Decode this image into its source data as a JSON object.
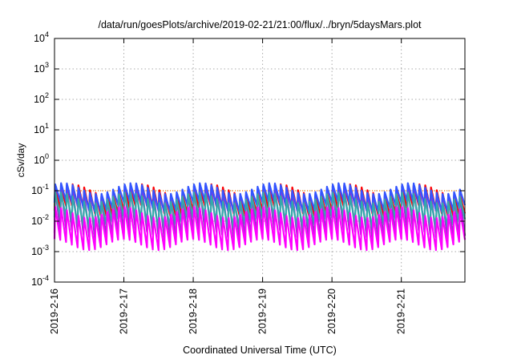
{
  "chart_data": {
    "type": "line",
    "title": "/data/run/goesPlots/archive/2019-02-21/21:00/flux/../bryn/5daysMars.plot",
    "xlabel": "Coordinated Universal Time (UTC)",
    "ylabel": "cSv/day",
    "yscale": "log",
    "ylim": [
      0.0001,
      10000
    ],
    "xlim": [
      "2019-02-16",
      "2019-02-21 22:00"
    ],
    "grid": true,
    "x_ticks": [
      "2019-2-16",
      "2019-2-17",
      "2019-2-18",
      "2019-2-19",
      "2019-2-20",
      "2019-2-21"
    ],
    "y_ticks": [
      {
        "base": "10",
        "exp": "-4",
        "value": 0.0001
      },
      {
        "base": "10",
        "exp": "-3",
        "value": 0.001
      },
      {
        "base": "10",
        "exp": "-2",
        "value": 0.01
      },
      {
        "base": "10",
        "exp": "-1",
        "value": 0.1
      },
      {
        "base": "10",
        "exp": "0",
        "value": 1
      },
      {
        "base": "10",
        "exp": "1",
        "value": 10
      },
      {
        "base": "10",
        "exp": "2",
        "value": 100
      },
      {
        "base": "10",
        "exp": "3",
        "value": 1000
      },
      {
        "base": "10",
        "exp": "4",
        "value": 10000
      }
    ],
    "cycle_hours": 2,
    "series_colors": [
      "#ff0000",
      "#9933cc",
      "#3355ff",
      "#33aaaa",
      "#ff00ff"
    ],
    "series": [
      {
        "color": "#ff0000",
        "peak": 0.11,
        "trough": 0.022
      },
      {
        "color": "#9933cc",
        "peak": 0.1,
        "trough": 0.0035
      },
      {
        "color": "#3355ff",
        "peak": 0.12,
        "trough": 0.03
      },
      {
        "color": "#33aaaa",
        "peak": 0.06,
        "trough": 0.009
      },
      {
        "color": "#ff00ff",
        "peak": 0.02,
        "trough": 0.0017
      }
    ],
    "reference_line": {
      "value": 0.1,
      "color": "#ff8800",
      "style": "dotted"
    }
  }
}
